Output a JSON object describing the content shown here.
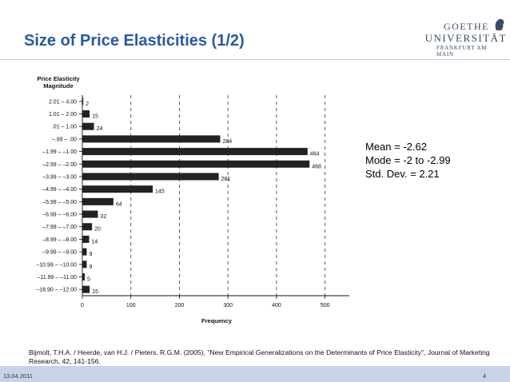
{
  "slide": {
    "title": "Size of Price Elasticities (1/2)",
    "logo": {
      "line1": "GOETHE",
      "line2": "UNIVERSITÄT",
      "line3": "FRANKFURT AM MAIN"
    },
    "stats": [
      "Mean = -2.62",
      "Mode = -2  to  -2.99",
      "Std. Dev. = 2.21"
    ],
    "citation_line1": "Bijmolt, T.H.A. / Heerde, van H.J. / Pieters, R.G.M. (2005), \"New Empirical Generalizations on the Determinants of Price Elasticity\", Journal of Marketing",
    "citation_line2": "Research, 42, 141-156.",
    "date": "13.04.2011",
    "page_number": "4"
  },
  "chart_data": {
    "type": "bar",
    "orientation": "horizontal",
    "ylabel": "Price Elasticity\nMagnitude",
    "xlabel": "Frequency",
    "categories": [
      "2.01 – 4.00",
      "1.01 – 2.00",
      ".01 – 1.00",
      "–.99 – .00",
      "–1.99 – –1.00",
      "–2.99 – –2.00",
      "–3.99 – –3.00",
      "–4.99 – –4.00",
      "–5.99 – –5.00",
      "–6.99 – –6.00",
      "–7.99 – –7.00",
      "–8.99 – –8.00",
      "–9.99 – –9.00",
      "–10.99 – –10.00",
      "–11.99 – –11.00",
      "–18.90 – –12.00"
    ],
    "values": [
      2,
      15,
      24,
      284,
      464,
      468,
      281,
      145,
      64,
      32,
      20,
      14,
      9,
      9,
      5,
      15
    ],
    "xlim": [
      0,
      550
    ],
    "xticks": [
      0,
      100,
      200,
      300,
      400,
      500
    ],
    "grid": "vertical-dashed",
    "bar_color": "#222222"
  }
}
